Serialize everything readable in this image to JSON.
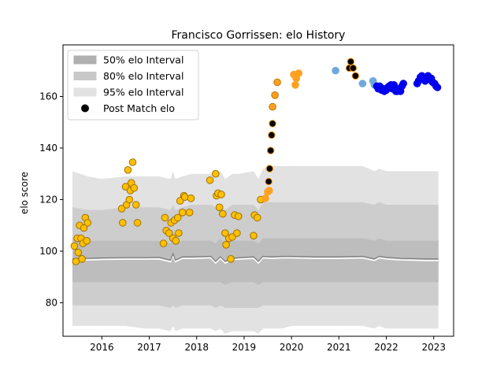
{
  "chart_data": {
    "type": "scatter",
    "title": "Francisco Gorrissen: elo History",
    "xlabel": "",
    "ylabel": "elo score",
    "xlim": [
      2015.18,
      2023.42
    ],
    "ylim": [
      67,
      180
    ],
    "x_ticks": [
      2016,
      2017,
      2018,
      2019,
      2020,
      2021,
      2022,
      2023
    ],
    "y_ticks": [
      80,
      100,
      120,
      140,
      160
    ],
    "legend": {
      "placement": "top-left",
      "entries": [
        {
          "label": "50% elo Interval",
          "color": "#b0b0b0",
          "kind": "patch"
        },
        {
          "label": "80% elo Interval",
          "color": "#c8c8c8",
          "kind": "patch"
        },
        {
          "label": "95% elo Interval",
          "color": "#e2e2e2",
          "kind": "patch"
        },
        {
          "label": "Post Match elo",
          "color": "#000000",
          "kind": "dot"
        }
      ]
    },
    "interval_bands": {
      "x": [
        2015.38,
        2015.7,
        2016.0,
        2016.5,
        2016.9,
        2017.2,
        2017.45,
        2017.5,
        2017.55,
        2017.7,
        2017.9,
        2018.3,
        2018.4,
        2018.5,
        2018.6,
        2018.75,
        2018.9,
        2019.2,
        2019.3,
        2019.4,
        2019.6,
        2019.8,
        2020.0,
        2020.5,
        2021.0,
        2021.5,
        2021.75,
        2021.85,
        2022.0,
        2022.3,
        2022.6,
        2022.8,
        2023.0,
        2023.1
      ],
      "mean": [
        97,
        97.2,
        97.4,
        97.5,
        97.5,
        97.6,
        96.5,
        99,
        96.5,
        97.8,
        97.8,
        98,
        96,
        97.8,
        96,
        97.2,
        97.5,
        97.8,
        96,
        98,
        97.8,
        98,
        98,
        97.8,
        97.8,
        98,
        97,
        98,
        97.6,
        97.2,
        97.1,
        97,
        97,
        97
      ],
      "p50": [
        [
          88,
          105
        ],
        [
          88,
          104
        ],
        [
          88,
          104
        ],
        [
          88,
          104
        ],
        [
          88,
          104
        ],
        [
          88,
          104
        ],
        [
          88,
          103
        ],
        [
          88,
          106
        ],
        [
          88,
          103
        ],
        [
          88,
          104
        ],
        [
          88,
          104
        ],
        [
          88,
          104
        ],
        [
          88,
          103
        ],
        [
          88,
          105
        ],
        [
          87,
          103
        ],
        [
          88,
          104
        ],
        [
          88,
          104
        ],
        [
          88,
          104
        ],
        [
          87,
          103
        ],
        [
          88,
          105
        ],
        [
          88,
          105
        ],
        [
          88,
          105
        ],
        [
          88,
          105
        ],
        [
          88,
          105
        ],
        [
          88,
          105
        ],
        [
          88,
          105
        ],
        [
          88,
          104
        ],
        [
          88,
          105
        ],
        [
          88,
          104
        ],
        [
          88,
          104
        ],
        [
          88,
          104
        ],
        [
          88,
          104
        ],
        [
          88,
          104
        ],
        [
          88,
          104
        ]
      ],
      "p80": [
        [
          79,
          117
        ],
        [
          79,
          116
        ],
        [
          79,
          116
        ],
        [
          79,
          117
        ],
        [
          79,
          117
        ],
        [
          79,
          117
        ],
        [
          78,
          116
        ],
        [
          79,
          118
        ],
        [
          78,
          116
        ],
        [
          79,
          117
        ],
        [
          79,
          118
        ],
        [
          79,
          118
        ],
        [
          78,
          117
        ],
        [
          79,
          118
        ],
        [
          78,
          116
        ],
        [
          78,
          118
        ],
        [
          78,
          118
        ],
        [
          78,
          118
        ],
        [
          78,
          116
        ],
        [
          79,
          119
        ],
        [
          79,
          119
        ],
        [
          79,
          119
        ],
        [
          79,
          119
        ],
        [
          79,
          119
        ],
        [
          79,
          119
        ],
        [
          79,
          119
        ],
        [
          79,
          118
        ],
        [
          79,
          119
        ],
        [
          79,
          118
        ],
        [
          79,
          118
        ],
        [
          79,
          118
        ],
        [
          79,
          118
        ],
        [
          79,
          118
        ],
        [
          79,
          118
        ]
      ],
      "p95": [
        [
          71,
          131
        ],
        [
          71,
          129
        ],
        [
          71,
          128
        ],
        [
          71,
          129
        ],
        [
          70,
          129
        ],
        [
          70,
          129
        ],
        [
          69,
          128
        ],
        [
          71,
          131
        ],
        [
          69,
          128
        ],
        [
          70,
          129
        ],
        [
          70,
          130
        ],
        [
          70,
          130
        ],
        [
          69,
          129
        ],
        [
          70,
          131
        ],
        [
          68,
          128
        ],
        [
          69,
          130
        ],
        [
          69,
          130
        ],
        [
          69,
          131
        ],
        [
          68,
          128
        ],
        [
          70,
          132
        ],
        [
          70,
          133
        ],
        [
          70,
          133
        ],
        [
          71,
          133
        ],
        [
          71,
          133
        ],
        [
          71,
          133
        ],
        [
          71,
          133
        ],
        [
          70,
          131
        ],
        [
          71,
          132
        ],
        [
          70,
          131
        ],
        [
          70,
          131
        ],
        [
          70,
          131
        ],
        [
          70,
          131
        ],
        [
          70,
          131
        ],
        [
          70,
          131
        ]
      ]
    },
    "series": [
      {
        "color": "#ffc000",
        "edge_color": "#a07000",
        "points": [
          [
            2015.42,
            102
          ],
          [
            2015.45,
            96
          ],
          [
            2015.48,
            105
          ],
          [
            2015.5,
            99.5
          ],
          [
            2015.53,
            110
          ],
          [
            2015.56,
            105
          ],
          [
            2015.58,
            97
          ],
          [
            2015.6,
            103
          ],
          [
            2015.62,
            109
          ],
          [
            2015.65,
            113
          ],
          [
            2015.68,
            104
          ],
          [
            2015.7,
            111
          ],
          [
            2016.42,
            116.5
          ],
          [
            2016.44,
            111
          ],
          [
            2016.5,
            125
          ],
          [
            2016.52,
            118
          ],
          [
            2016.55,
            131.5
          ],
          [
            2016.58,
            120
          ],
          [
            2016.6,
            123.5
          ],
          [
            2016.62,
            126.5
          ],
          [
            2016.65,
            134.5
          ],
          [
            2016.68,
            124.5
          ],
          [
            2016.72,
            118
          ],
          [
            2016.75,
            111
          ],
          [
            2017.3,
            103
          ],
          [
            2017.33,
            113
          ],
          [
            2017.36,
            108
          ],
          [
            2017.42,
            107
          ],
          [
            2017.46,
            111
          ],
          [
            2017.5,
            105
          ],
          [
            2017.53,
            112
          ],
          [
            2017.56,
            104
          ],
          [
            2017.6,
            113
          ],
          [
            2017.62,
            107
          ],
          [
            2017.65,
            119.5
          ],
          [
            2017.7,
            115
          ],
          [
            2017.73,
            121.5
          ],
          [
            2017.75,
            121
          ],
          [
            2017.85,
            115
          ],
          [
            2017.88,
            120.5
          ],
          [
            2018.28,
            127.5
          ],
          [
            2018.4,
            130
          ],
          [
            2018.42,
            121.5
          ],
          [
            2018.45,
            122.5
          ],
          [
            2018.48,
            117
          ],
          [
            2018.52,
            122
          ],
          [
            2018.55,
            114.5
          ],
          [
            2018.6,
            107
          ],
          [
            2018.62,
            102.5
          ],
          [
            2018.68,
            105
          ],
          [
            2018.72,
            97
          ],
          [
            2018.75,
            105.5
          ],
          [
            2018.8,
            114
          ],
          [
            2018.85,
            107
          ],
          [
            2018.88,
            113.5
          ],
          [
            2019.2,
            106
          ],
          [
            2019.22,
            114
          ],
          [
            2019.28,
            113
          ],
          [
            2019.35,
            120
          ]
        ]
      },
      {
        "color": "#ffa020",
        "edge_color": "#ffa020",
        "points": [
          [
            2019.45,
            120.5
          ],
          [
            2019.5,
            123
          ],
          [
            2019.53,
            123.5
          ],
          [
            2020.05,
            168.5
          ],
          [
            2020.08,
            164.5
          ],
          [
            2020.1,
            167
          ],
          [
            2020.15,
            169
          ]
        ]
      },
      {
        "color": "#ffa020",
        "edge_color": "#b87800",
        "points": [
          [
            2019.6,
            156
          ],
          [
            2019.65,
            160.5
          ],
          [
            2019.7,
            165.5
          ]
        ]
      },
      {
        "color": "#000000",
        "edge_color": "#ffa020",
        "points": [
          [
            2019.52,
            127
          ],
          [
            2019.54,
            132
          ],
          [
            2019.56,
            139
          ],
          [
            2019.58,
            145
          ],
          [
            2019.6,
            149.5
          ],
          [
            2021.22,
            171
          ],
          [
            2021.25,
            173.5
          ],
          [
            2021.3,
            171
          ],
          [
            2021.35,
            168
          ]
        ]
      },
      {
        "color": "#6fa8dc",
        "edge_color": "#6fa8dc",
        "points": [
          [
            2020.93,
            170
          ],
          [
            2021.5,
            165
          ],
          [
            2021.72,
            166
          ],
          [
            2021.75,
            164.5
          ]
        ]
      },
      {
        "color": "#0000ee",
        "edge_color": "#0000ee",
        "points": [
          [
            2021.8,
            164
          ],
          [
            2021.83,
            163
          ],
          [
            2021.86,
            164
          ],
          [
            2021.9,
            162.5
          ],
          [
            2021.93,
            163
          ],
          [
            2021.96,
            162
          ],
          [
            2022.0,
            162.5
          ],
          [
            2022.03,
            163.5
          ],
          [
            2022.06,
            164
          ],
          [
            2022.1,
            164.5
          ],
          [
            2022.13,
            163
          ],
          [
            2022.16,
            164.5
          ],
          [
            2022.2,
            162
          ],
          [
            2022.23,
            162
          ],
          [
            2022.26,
            163
          ],
          [
            2022.3,
            162
          ],
          [
            2022.33,
            164
          ],
          [
            2022.36,
            165
          ],
          [
            2022.65,
            165
          ],
          [
            2022.68,
            166
          ],
          [
            2022.72,
            167.5
          ],
          [
            2022.75,
            168
          ],
          [
            2022.78,
            167
          ],
          [
            2022.82,
            166
          ],
          [
            2022.85,
            167
          ],
          [
            2022.88,
            168
          ],
          [
            2022.92,
            166.5
          ],
          [
            2022.95,
            167
          ],
          [
            2022.98,
            165.5
          ],
          [
            2023.02,
            165
          ],
          [
            2023.05,
            164
          ],
          [
            2023.08,
            163.5
          ]
        ]
      }
    ]
  }
}
